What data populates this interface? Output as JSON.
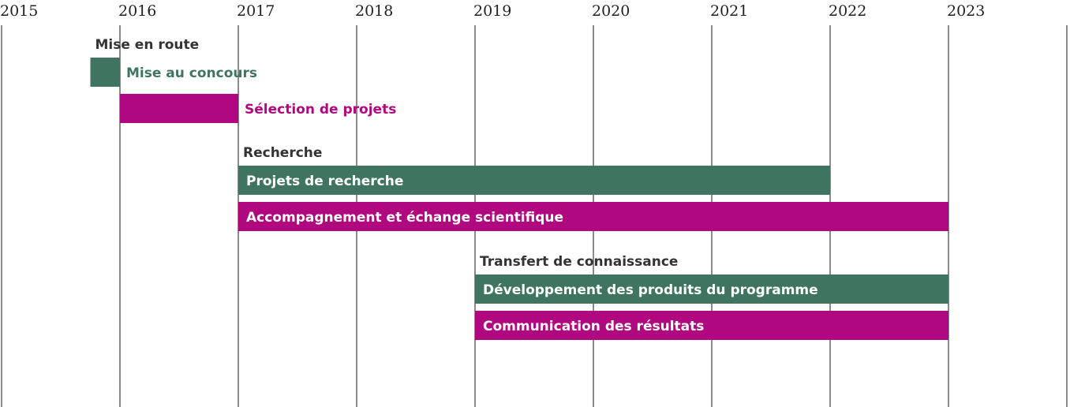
{
  "chart_data": {
    "type": "gantt",
    "title": "",
    "x_ticks": [
      "2015",
      "2016",
      "2017",
      "2018",
      "2019",
      "2020",
      "2021",
      "2022",
      "2023"
    ],
    "xlim": [
      2015,
      2024
    ],
    "grid": true,
    "colors": {
      "green": "#3f7560",
      "magenta": "#b0097f",
      "grid": "#8a8a8a",
      "group": "#333333"
    },
    "groups": [
      {
        "label": "Mise en route",
        "start": 2015.75,
        "tasks": [
          {
            "label": "Mise au concours",
            "start": 2015.75,
            "end": 2016,
            "color": "green",
            "label_outside": true
          },
          {
            "label": "Sélection de projets",
            "start": 2016,
            "end": 2017,
            "color": "magenta",
            "label_outside": true
          }
        ]
      },
      {
        "label": "Recherche",
        "start": 2017,
        "tasks": [
          {
            "label": "Projets de recherche",
            "start": 2017,
            "end": 2022,
            "color": "green",
            "label_outside": false
          },
          {
            "label": "Accompagnement et échange scientifique",
            "start": 2017,
            "end": 2023,
            "color": "magenta",
            "label_outside": false
          }
        ]
      },
      {
        "label": "Transfert de connaissance",
        "start": 2019,
        "tasks": [
          {
            "label": "Développement des produits du programme",
            "start": 2019,
            "end": 2023,
            "color": "green",
            "label_outside": false
          },
          {
            "label": "Communication des résultats",
            "start": 2019,
            "end": 2023,
            "color": "magenta",
            "label_outside": false
          }
        ]
      }
    ]
  }
}
